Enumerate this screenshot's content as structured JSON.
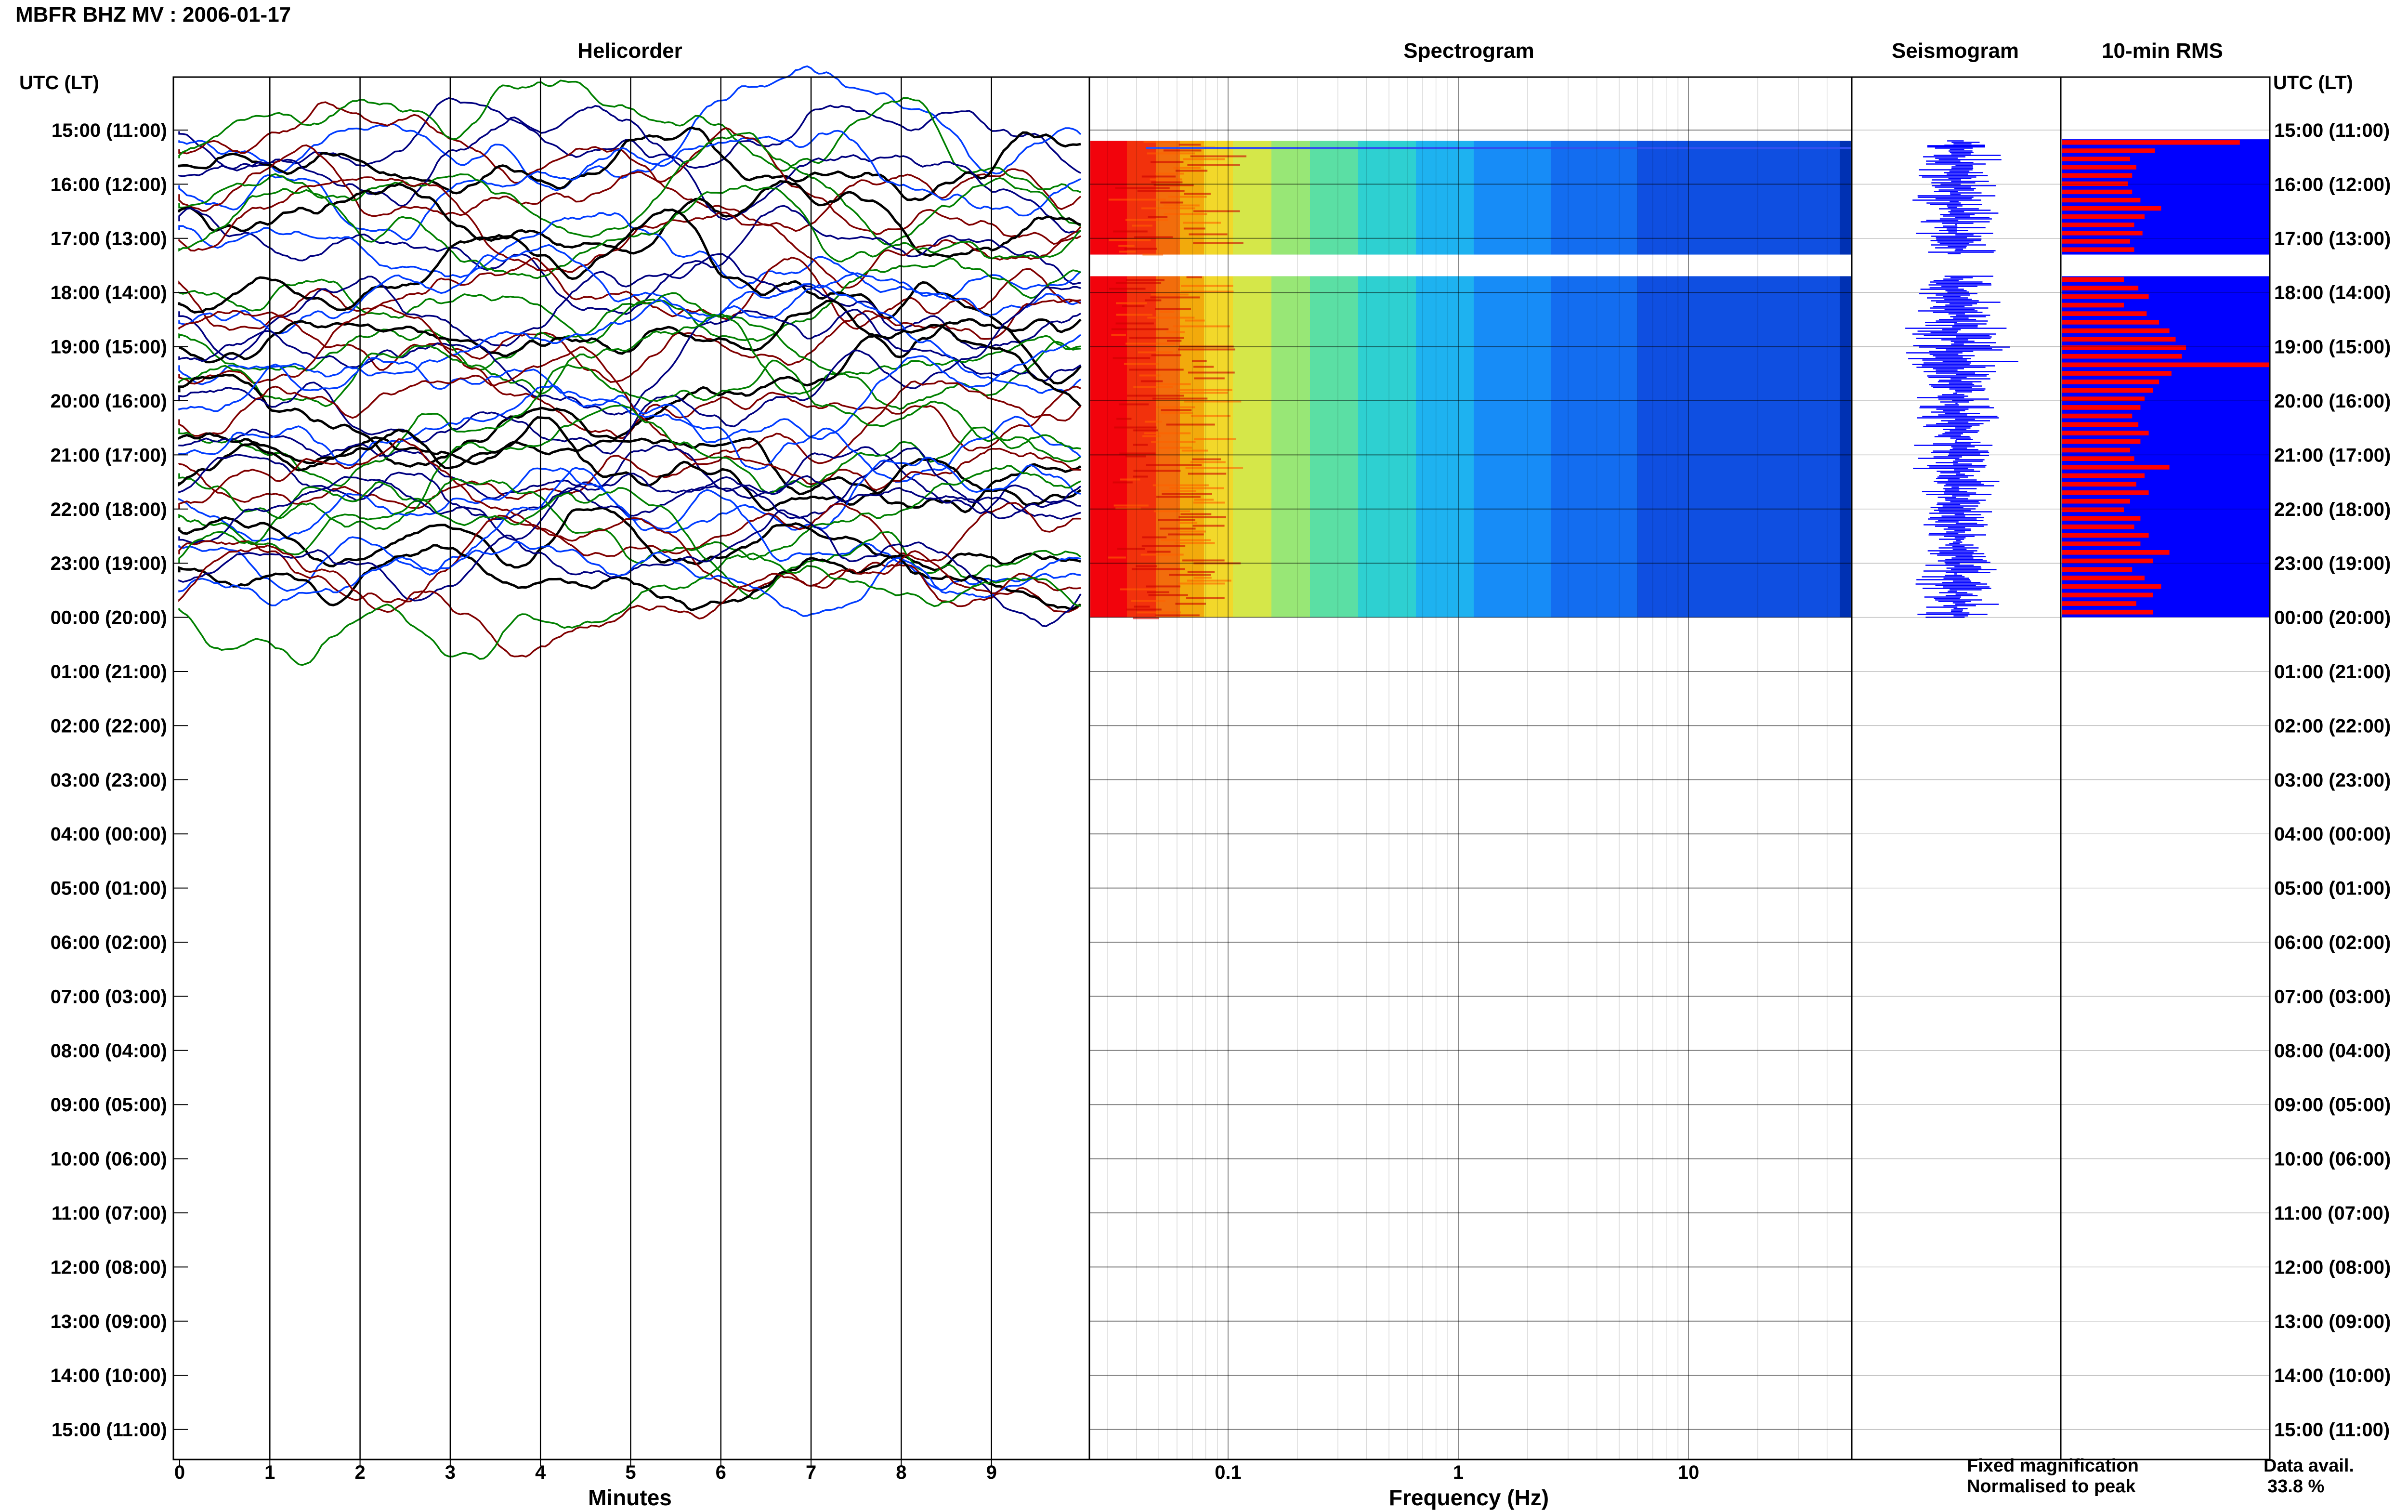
{
  "title": "MBFR BHZ MV : 2006-01-17",
  "panels": {
    "helicorder": "Helicorder",
    "spectrogram": "Spectrogram",
    "seismogram": "Seismogram",
    "rms": "10-min RMS"
  },
  "time_axis": {
    "label_left": "UTC (LT)",
    "label_right": "UTC (LT)",
    "ticks": [
      "15:00 (11:00)",
      "16:00 (12:00)",
      "17:00 (13:00)",
      "18:00 (14:00)",
      "19:00 (15:00)",
      "20:00 (16:00)",
      "21:00 (17:00)",
      "22:00 (18:00)",
      "23:00 (19:00)",
      "00:00 (20:00)",
      "01:00 (21:00)",
      "02:00 (22:00)",
      "03:00 (23:00)",
      "04:00 (00:00)",
      "05:00 (01:00)",
      "06:00 (02:00)",
      "07:00 (03:00)",
      "08:00 (04:00)",
      "09:00 (05:00)",
      "10:00 (06:00)",
      "11:00 (07:00)",
      "12:00 (08:00)",
      "13:00 (09:00)",
      "14:00 (10:00)",
      "15:00 (11:00)"
    ]
  },
  "helicorder_axis": {
    "label": "Minutes",
    "ticks": [
      "0",
      "1",
      "2",
      "3",
      "4",
      "5",
      "6",
      "7",
      "8",
      "9"
    ]
  },
  "spectrogram_axis": {
    "label": "Frequency (Hz)",
    "ticks": [
      "0.1",
      "1",
      "10"
    ]
  },
  "legend": {
    "fixed": "Fixed magnification",
    "normalised": "Normalised to peak",
    "fixed_color": "#0000ff",
    "normalised_color": "#ff0000"
  },
  "availability": {
    "label": "Data avail.",
    "value": "33.8 %"
  },
  "chart_data": {
    "type": "bar",
    "station": "MBFR BHZ MV",
    "date": "2006-01-17",
    "data_start_hour": 15.2,
    "data_end_hour": 24,
    "gap_hours": [
      17.3,
      17.7
    ],
    "rms_normalised": [
      0.86,
      0.45,
      0.33,
      0.36,
      0.34,
      0.32,
      0.34,
      0.38,
      0.48,
      0.4,
      0.35,
      0.39,
      0.33,
      0.35,
      0.3,
      0.37,
      0.42,
      0.3,
      0.41,
      0.47,
      0.52,
      0.55,
      0.6,
      0.58,
      1.0,
      0.53,
      0.47,
      0.44,
      0.4,
      0.38,
      0.34,
      0.37,
      0.42,
      0.38,
      0.33,
      0.35,
      0.52,
      0.4,
      0.36,
      0.42,
      0.33,
      0.3,
      0.38,
      0.35,
      0.42,
      0.38,
      0.52,
      0.44,
      0.34,
      0.4,
      0.48,
      0.44,
      0.36,
      0.44
    ],
    "colors": {
      "helicorder_traces": [
        "#000080",
        "#003cff",
        "#800000",
        "#008000",
        "#000000"
      ]
    }
  }
}
